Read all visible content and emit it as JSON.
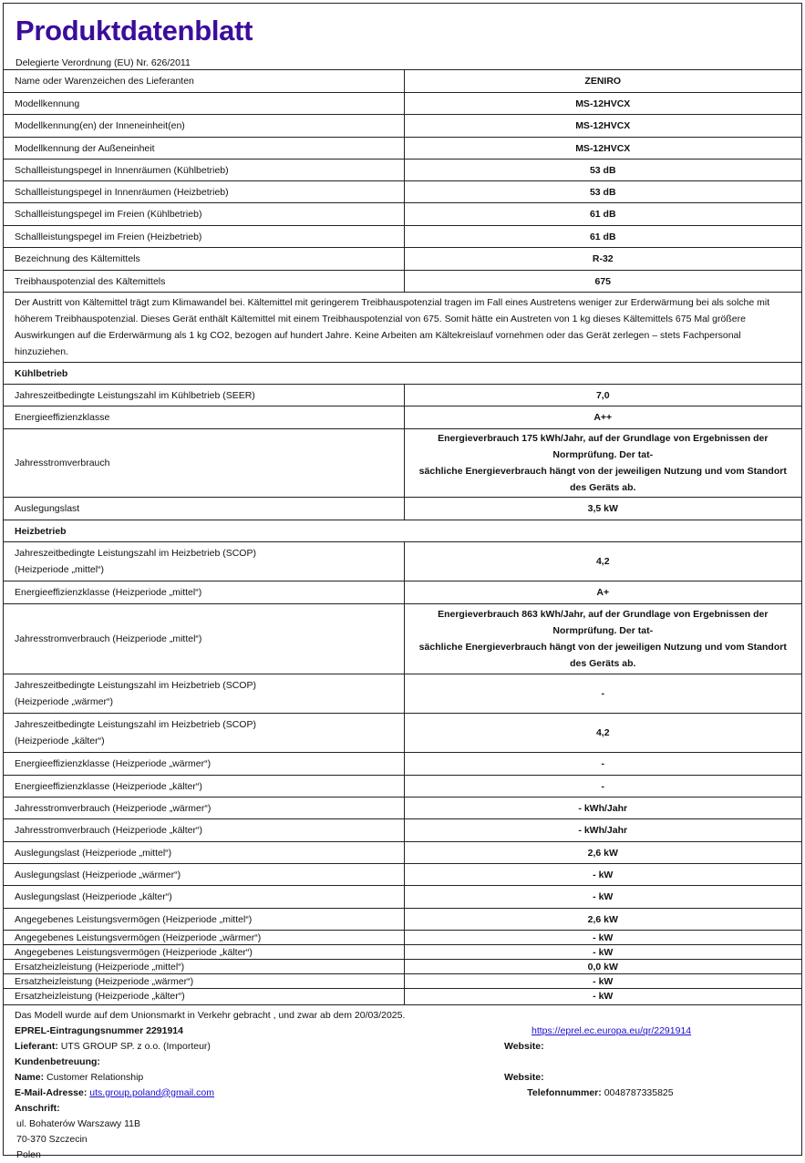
{
  "title": "Produktdatenblatt",
  "subtitle": "Delegierte Verordnung (EU) Nr. 626/2011",
  "rows": [
    {
      "label": "Name oder Warenzeichen des Lieferanten",
      "value": "ZENIRO",
      "h": 25
    },
    {
      "label": "Modellkennung",
      "value": "MS-12HVCX",
      "h": 24
    },
    {
      "label": "Modellkennung(en) der Inneneinheit(en)",
      "value": "MS-12HVCX",
      "h": 25
    },
    {
      "label": "Modellkennung der Außeneinheit",
      "value": "MS-12HVCX",
      "h": 24
    },
    {
      "label": "Schallleistungspegel in Innenräumen (Kühlbetrieb)",
      "value": "53 dB",
      "h": 24
    },
    {
      "label": "Schallleistungspegel in Innenräumen (Heizbetrieb)",
      "value": "53 dB",
      "h": 24
    },
    {
      "label": "Schallleistungspegel im Freien (Kühlbetrieb)",
      "value": "61 dB",
      "h": 25
    },
    {
      "label": "Schallleistungspegel im Freien (Heizbetrieb)",
      "value": "61 dB",
      "h": 24
    },
    {
      "label": "Bezeichnung des Kältemittels",
      "value": "R-32",
      "h": 25
    },
    {
      "label": "Treibhauspotenzial des Kältemittels",
      "value": "675",
      "h": 24
    },
    {
      "full": "Der Austritt von Kältemittel trägt zum Klimawandel bei. Kältemittel mit geringerem Treibhauspotenzial tragen im Fall eines Austretens weniger zur Erderwärmung bei als solche mit höherem Treibhauspotenzial. Dieses Gerät enthält Kältemittel mit einem Treibhauspotenzial von 675. Somit hätte ein Austreten von 1 kg dieses Kältemittels 675 Mal größere Auswirkungen auf die Erderwärmung als 1 kg CO2, bezogen auf hundert Jahre. Keine Arbeiten am Kältekreislauf vornehmen oder das Gerät zerlegen – stets Fachpersonal hinzuziehen.",
      "h": 73
    },
    {
      "section": "Kühlbetrieb",
      "h": 24
    },
    {
      "label": "Jahreszeitbedingte Leistungszahl im Kühlbetrieb (SEER)",
      "value": "7,0",
      "h": 24
    },
    {
      "label": "Energieeffizienzklasse",
      "value": "A++",
      "h": 25
    },
    {
      "label": "Jahresstromverbrauch",
      "value": "Energieverbrauch 175 kWh/Jahr, auf der Grundlage von Ergebnissen der Normprüfung. Der tat-\nsächliche Energieverbrauch hängt von der jeweiligen Nutzung und vom Standort des Geräts ab.",
      "h": 75
    },
    {
      "label": "Auslegungslast",
      "value": "3,5 kW",
      "h": 25
    },
    {
      "section": "Heizbetrieb",
      "h": 24
    },
    {
      "label": "Jahreszeitbedingte Leistungszahl im Heizbetrieb (SCOP)\n(Heizperiode „mittel“)",
      "value": "4,2",
      "h": 43
    },
    {
      "label": "Energieeffizienzklasse (Heizperiode „mittel“)",
      "value": "A+",
      "h": 25
    },
    {
      "label": "Jahresstromverbrauch (Heizperiode „mittel“)",
      "value": "Energieverbrauch 863 kWh/Jahr, auf der Grundlage von Ergebnissen der Normprüfung. Der tat-\nsächliche Energieverbrauch hängt von der jeweiligen Nutzung und vom Standort des Geräts ab.",
      "h": 77
    },
    {
      "label": "Jahreszeitbedingte Leistungszahl im Heizbetrieb (SCOP)\n(Heizperiode „wärmer“)",
      "value": "-",
      "h": 43
    },
    {
      "label": "Jahreszeitbedingte Leistungszahl im Heizbetrieb (SCOP)\n(Heizperiode „kälter“)",
      "value": "4,2",
      "h": 43
    },
    {
      "label": "Energieeffizienzklasse (Heizperiode „wärmer“)",
      "value": "-",
      "h": 25
    },
    {
      "label": "Energieeffizienzklasse (Heizperiode „kälter“)",
      "value": "-",
      "h": 24
    },
    {
      "label": "Jahresstromverbrauch (Heizperiode „wärmer“)",
      "value": "- kWh/Jahr",
      "h": 24
    },
    {
      "label": "Jahresstromverbrauch (Heizperiode „kälter“)",
      "value": "- kWh/Jahr",
      "h": 25
    },
    {
      "label": "Auslegungslast (Heizperiode „mittel“)",
      "value": "2,6 kW",
      "h": 24
    },
    {
      "label": "Auslegungslast (Heizperiode „wärmer“)",
      "value": "- kW",
      "h": 24
    },
    {
      "label": "Auslegungslast (Heizperiode „kälter“)",
      "value": "- kW",
      "h": 25
    },
    {
      "label": "Angegebenes Leistungsvermögen (Heizperiode „mittel“)",
      "value": "2,6 kW",
      "h": 24
    },
    {
      "label": "Angegebenes Leistungsvermögen (Heizperiode „wärmer“)",
      "value": "- kW",
      "h": 16
    },
    {
      "label": "Angegebenes Leistungsvermögen (Heizperiode „kälter“)",
      "value": "- kW",
      "h": 16
    },
    {
      "label": "Ersatzheizleistung (Heizperiode „mittel“)",
      "value": "0,0 kW",
      "h": 16
    },
    {
      "label": "Ersatzheizleistung (Heizperiode „wärmer“)",
      "value": "- kW",
      "h": 16
    },
    {
      "label": "Ersatzheizleistung (Heizperiode „kälter“)",
      "value": "- kW",
      "h": 17
    }
  ],
  "footer": {
    "market": "Das Modell wurde auf dem Unionsmarkt in Verkehr gebracht , und zwar ab dem 20/03/2025.",
    "eprel": "EPREL-Eintragungsnummer 2291914",
    "eprel_link": "https://eprel.ec.europa.eu/qr/2291914",
    "supplier_label": "Lieferant:",
    "supplier": "UTS GROUP SP. z o.o. (Importeur)",
    "website_label": "Website:",
    "support_label": "Kundenbetreuung:",
    "name_label": "Name:",
    "name": "Customer Relationship",
    "website2_label": "Website:",
    "email_label": "E-Mail-Adresse:",
    "email": "uts.group.poland@gmail.com",
    "phone_label": "Telefonnummer:",
    "phone": "0048787335825",
    "address_label": "Anschrift:",
    "address": [
      "ul. Bohaterów Warszawy 11B",
      "70-370 Szczecin",
      "Polen"
    ]
  }
}
